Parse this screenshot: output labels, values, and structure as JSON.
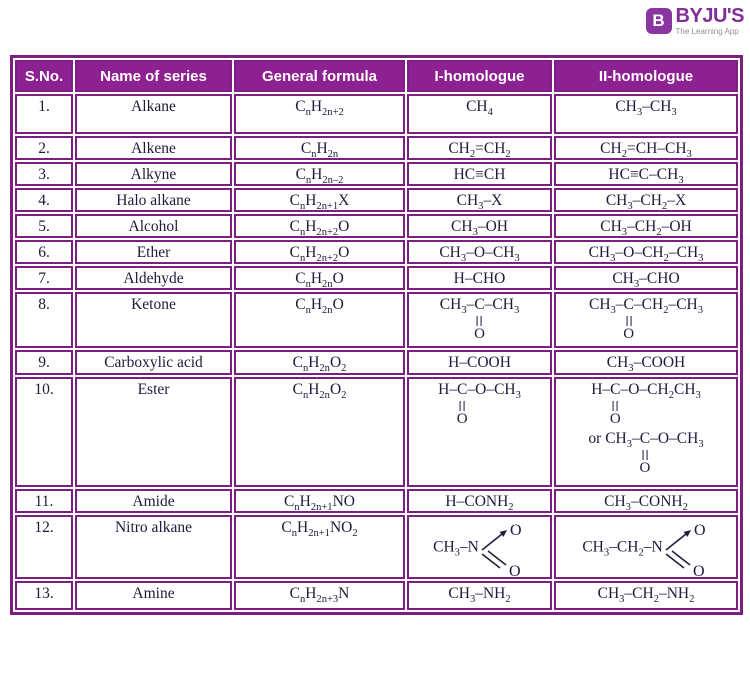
{
  "colors": {
    "header_bg": "#8e2192",
    "border": "#7b2080",
    "text": "#1d1b3a",
    "logo_purple": "#822f95",
    "tagline_gray": "#8f8f8f"
  },
  "logo": {
    "mark": "B",
    "brand": "BYJU'S",
    "tagline": "The Learning App"
  },
  "table": {
    "headers": [
      "S.No.",
      "Name of series",
      "General formula",
      "I-homologue",
      "II-homologue"
    ],
    "rows": [
      {
        "sno": "1.",
        "name": "Alkane",
        "formula": "C{n}H{2n+2}",
        "h1": [
          "CH{4}"
        ],
        "h2": [
          "CH{3}–CH{3}"
        ]
      },
      {
        "sno": "2.",
        "name": "Alkene",
        "formula": "C{n}H{2n}",
        "h1": [
          "CH{2}=CH{2}"
        ],
        "h2": [
          "CH{2}=CH–CH{3}"
        ]
      },
      {
        "sno": "3.",
        "name": "Alkyne",
        "formula": "C{n}H{2n–2}",
        "h1": [
          "HC≡CH"
        ],
        "h2": [
          "HC≡C–CH{3}"
        ]
      },
      {
        "sno": "4.",
        "name": "Halo alkane",
        "formula": "C{n}H{2n+1}X",
        "h1": [
          "CH{3}–X"
        ],
        "h2": [
          "CH{3}–CH{2}–X"
        ]
      },
      {
        "sno": "5.",
        "name": "Alcohol",
        "formula": "C{n}H{2n+2}O",
        "h1": [
          "CH{3}–OH"
        ],
        "h2": [
          "CH{3}–CH{2}–OH"
        ]
      },
      {
        "sno": "6.",
        "name": "Ether",
        "formula": "C{n}H{2n+2}O",
        "h1": [
          "CH{3}–O–CH{3}"
        ],
        "h2": [
          "CH{3}–O–CH{2}–CH{3}"
        ]
      },
      {
        "sno": "7.",
        "name": "Aldehyde",
        "formula": "C{n}H{2n}O",
        "h1": [
          "H–CHO"
        ],
        "h2": [
          "CH{3}–CHO"
        ]
      },
      {
        "sno": "8.",
        "name": "Ketone",
        "formula": "C{n}H{2n}O",
        "h1": [
          "CH{3}–[C=O]–CH{3}"
        ],
        "h2": [
          "CH{3}–[C=O]–CH{2}–CH{3}"
        ]
      },
      {
        "sno": "9.",
        "name": "Carboxylic acid",
        "formula": "C{n}H{2n}O{2}",
        "h1": [
          "H–COOH"
        ],
        "h2": [
          "CH{3}–COOH"
        ]
      },
      {
        "sno": "10.",
        "name": "Ester",
        "formula": "C{n}H{2n}O{2}",
        "h1": [
          "H–[C=O]–O–CH{3}"
        ],
        "h2": [
          "H–[C=O]–O–CH{2}CH{3}",
          "or CH{3}–[C=O]–O–CH{3}"
        ]
      },
      {
        "sno": "11.",
        "name": "Amide",
        "formula": "C{n}H{2n+1}NO",
        "h1": [
          "H–CONH{2}"
        ],
        "h2": [
          "CH{3}–CONH{2}"
        ]
      },
      {
        "sno": "12.",
        "name": "Nitro alkane",
        "formula": "C{n}H{2n+1}NO{2}",
        "h1": [
          "CH{3}–N[NO2]"
        ],
        "h2": [
          "CH{3}–CH{2}–N[NO2]"
        ]
      },
      {
        "sno": "13.",
        "name": "Amine",
        "formula": "C{n}H{2n+3}N",
        "h1": [
          "CH{3}–NH{2}"
        ],
        "h2": [
          "CH{3}–CH{2}–NH{2}"
        ]
      }
    ]
  }
}
